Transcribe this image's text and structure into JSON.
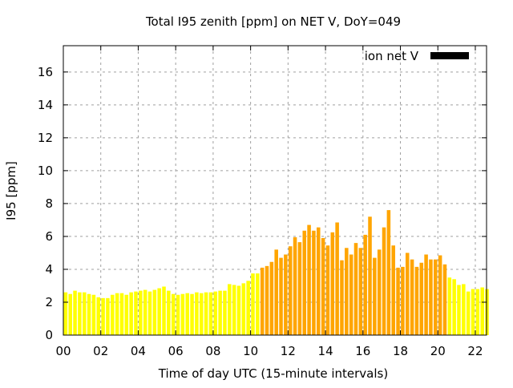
{
  "chart_data": {
    "type": "bar",
    "title": "Total I95 zenith [ppm] on NET V, DoY=049",
    "xlabel": "Time of day UTC (15-minute intervals)",
    "ylabel": "I95 [ppm]",
    "xlim": [
      0,
      22.6
    ],
    "ylim": [
      0,
      17.6
    ],
    "grid": true,
    "legend": {
      "placement": "top-right",
      "entries": [
        {
          "label": "ion net V",
          "color": "#000000"
        }
      ]
    },
    "x_ticks": [
      "00",
      "02",
      "04",
      "06",
      "08",
      "10",
      "12",
      "14",
      "16",
      "18",
      "20",
      "22"
    ],
    "y_ticks": [
      "0",
      "2",
      "4",
      "6",
      "8",
      "10",
      "12",
      "14",
      "16"
    ],
    "bar_interval_hours": 0.25,
    "colors": {
      "low": "#ffff00",
      "high": "#ffa500"
    },
    "threshold": 4,
    "values": [
      2.6,
      2.5,
      2.7,
      2.6,
      2.6,
      2.5,
      2.45,
      2.3,
      2.25,
      2.25,
      2.45,
      2.55,
      2.55,
      2.45,
      2.6,
      2.65,
      2.7,
      2.75,
      2.65,
      2.75,
      2.85,
      2.95,
      2.7,
      2.5,
      2.45,
      2.5,
      2.55,
      2.5,
      2.6,
      2.55,
      2.6,
      2.6,
      2.65,
      2.7,
      2.7,
      3.1,
      3.05,
      3.0,
      3.15,
      3.3,
      3.75,
      3.75,
      4.1,
      4.2,
      4.45,
      5.2,
      4.7,
      4.9,
      5.4,
      5.95,
      5.65,
      6.35,
      6.7,
      6.35,
      6.55,
      5.9,
      5.45,
      6.25,
      6.85,
      4.55,
      5.3,
      4.9,
      5.6,
      5.3,
      6.1,
      7.2,
      4.7,
      5.2,
      6.55,
      7.6,
      5.45,
      4.1,
      4.15,
      5.0,
      4.6,
      4.15,
      4.4,
      4.9,
      4.6,
      4.6,
      4.85,
      4.3,
      3.5,
      3.4,
      3.05,
      3.1,
      2.65,
      2.8,
      2.8,
      2.9,
      2.8
    ]
  }
}
